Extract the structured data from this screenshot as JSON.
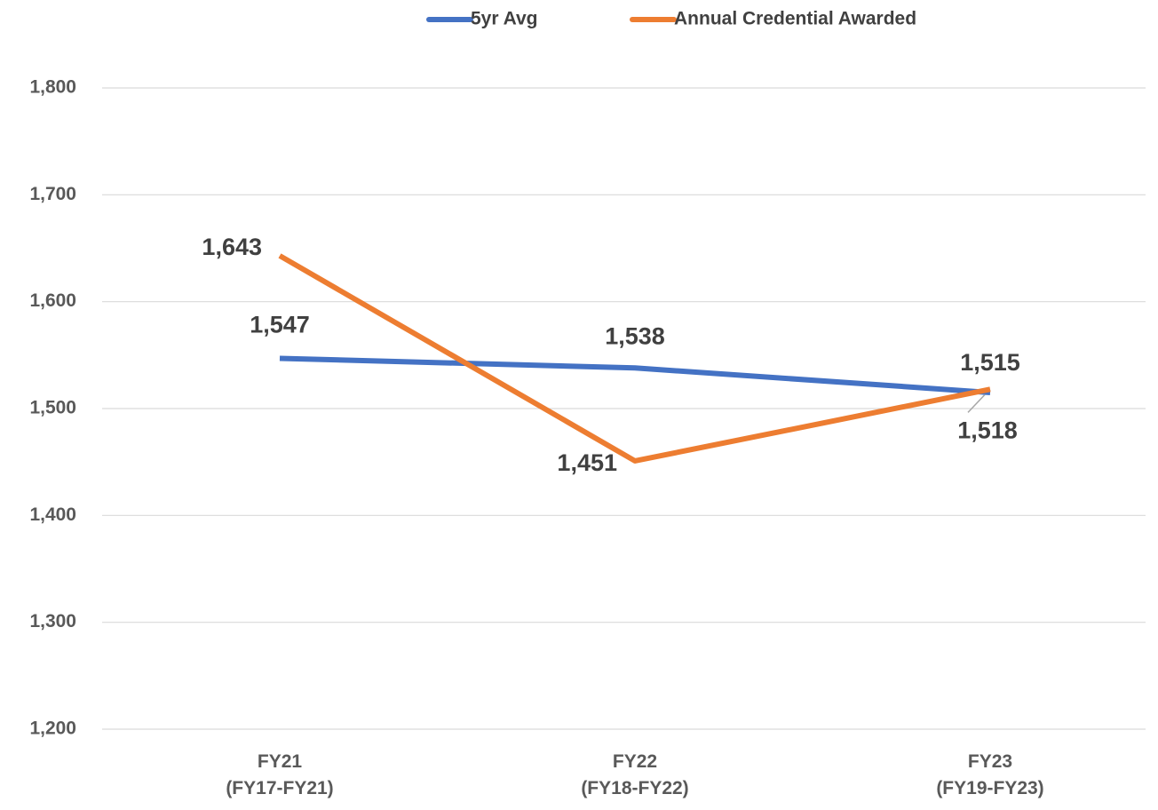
{
  "chart_data": {
    "type": "line",
    "categories": [
      "FY21\n(FY17-FY21)",
      "FY22\n(FY18-FY22)",
      "FY23\n(FY19-FY23)"
    ],
    "series": [
      {
        "name": "5yr Avg",
        "color": "#4472c4",
        "values": [
          1547,
          1538,
          1515
        ],
        "value_labels": [
          "1,547",
          "1,538",
          "1,515"
        ]
      },
      {
        "name": "Annual Credential Awarded",
        "color": "#ed7d31",
        "values": [
          1643,
          1451,
          1518
        ],
        "value_labels": [
          "1,643",
          "1,451",
          "1,518"
        ]
      }
    ],
    "ylim": [
      1200,
      1800
    ],
    "yticks": [
      {
        "value": 1200,
        "label": "1,200"
      },
      {
        "value": 1300,
        "label": "1,300"
      },
      {
        "value": 1400,
        "label": "1,400"
      },
      {
        "value": 1500,
        "label": "1,500"
      },
      {
        "value": 1600,
        "label": "1,600"
      },
      {
        "value": 1700,
        "label": "1,700"
      },
      {
        "value": 1800,
        "label": "1,800"
      }
    ],
    "grid": true,
    "legend": "top"
  }
}
